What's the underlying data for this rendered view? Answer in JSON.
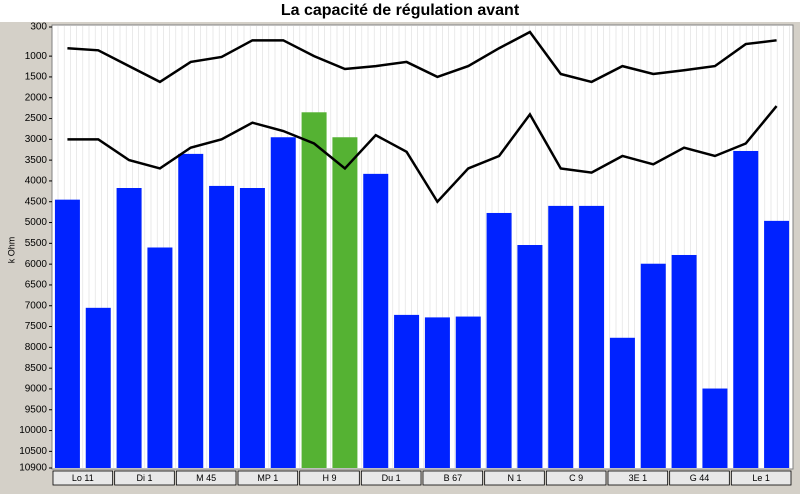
{
  "chart_data": {
    "type": "bar",
    "title": "La capacité de régulation avant",
    "y_label": "k Ohm",
    "groups": [
      "Lo 11",
      "Di 1",
      "M 45",
      "MP 1",
      "H 9",
      "Du 1",
      "B 67",
      "N 1",
      "C 9",
      "3E 1",
      "G 44",
      "Le 1"
    ],
    "values": [
      4450,
      7050,
      4170,
      5600,
      3350,
      4120,
      4170,
      2950,
      2350,
      2950,
      3830,
      7220,
      7280,
      7260,
      4770,
      5540,
      4600,
      4600,
      7770,
      5990,
      5780,
      8990,
      3280,
      4960
    ],
    "colors": [
      "#0022ff",
      "#0022ff",
      "#0022ff",
      "#0022ff",
      "#0022ff",
      "#0022ff",
      "#0022ff",
      "#0022ff",
      "#55b233",
      "#55b233",
      "#0022ff",
      "#0022ff",
      "#0022ff",
      "#0022ff",
      "#0022ff",
      "#0022ff",
      "#0022ff",
      "#0022ff",
      "#0022ff",
      "#0022ff",
      "#0022ff",
      "#0022ff",
      "#0022ff",
      "#0022ff"
    ],
    "lines": [
      {
        "color": "#000000",
        "values": [
          810,
          860,
          1240,
          1620,
          1140,
          1020,
          620,
          620,
          1000,
          1310,
          1240,
          1140,
          1500,
          1240,
          810,
          420,
          1430,
          1620,
          1240,
          1430,
          1340,
          1240,
          710,
          620
        ]
      },
      {
        "color": "#000000",
        "values": [
          3000,
          3000,
          3500,
          3700,
          3200,
          3000,
          2600,
          2800,
          3100,
          3700,
          2900,
          3300,
          4500,
          3700,
          3400,
          2400,
          3700,
          3800,
          3400,
          3600,
          3200,
          3400,
          3100,
          2200
        ]
      }
    ],
    "ylim": [
      300,
      10900
    ],
    "y_inverted": true,
    "yticks": [
      300,
      1000,
      1500,
      2000,
      2500,
      3000,
      3500,
      4000,
      4500,
      5000,
      5500,
      6000,
      6500,
      7000,
      7500,
      8000,
      8500,
      9000,
      9500,
      10000,
      10500,
      10900
    ]
  }
}
